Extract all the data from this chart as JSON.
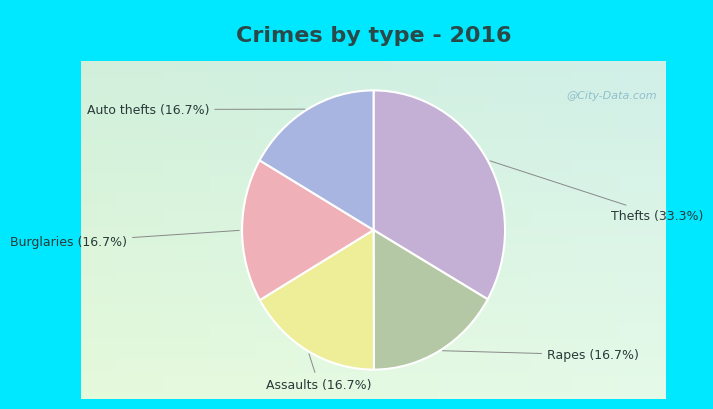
{
  "title": "Crimes by type - 2016",
  "title_color": "#2a4a4a",
  "slices": [
    {
      "label": "Thefts (33.3%)",
      "value": 33.3,
      "color": "#c4b0d5"
    },
    {
      "label": "Rapes (16.7%)",
      "value": 16.7,
      "color": "#b5c8a5"
    },
    {
      "label": "Assaults (16.7%)",
      "value": 16.7,
      "color": "#eeee99"
    },
    {
      "label": "Burglaries (16.7%)",
      "value": 16.7,
      "color": "#f0b0b8"
    },
    {
      "label": "Auto thefts (16.7%)",
      "value": 16.7,
      "color": "#a8b5e0"
    }
  ],
  "border_color": "#00e8ff",
  "inner_bg_color": "#d8f0e0",
  "title_bg_color": "#00e8ff",
  "title_fontsize": 16,
  "label_fontsize": 9,
  "watermark": "@City-Data.com",
  "watermark_color": "#90c0cc",
  "label_color": "#2a3a3a"
}
